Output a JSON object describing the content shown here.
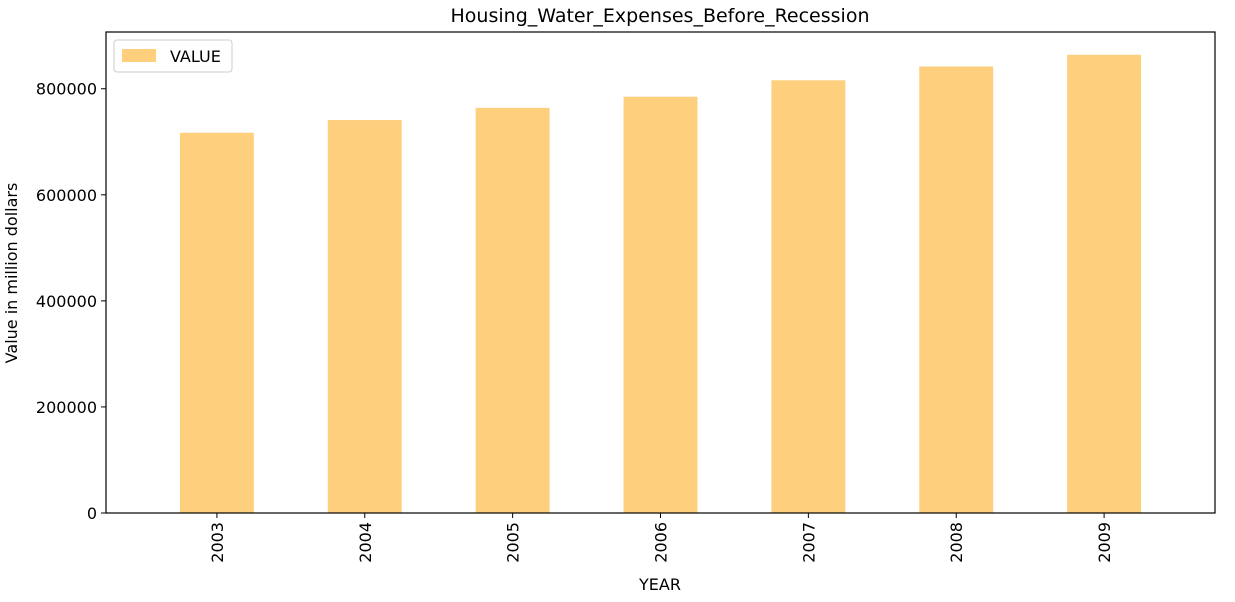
{
  "chart_data": {
    "type": "bar",
    "title": "Housing_Water_Expenses_Before_Recession",
    "xlabel": "YEAR",
    "ylabel": "Value in million dollars",
    "categories": [
      "2003",
      "2004",
      "2005",
      "2006",
      "2007",
      "2008",
      "2009"
    ],
    "series": [
      {
        "name": "VALUE",
        "color": "#fed07e",
        "values": [
          717000,
          741000,
          764000,
          785000,
          816000,
          842000,
          864000
        ]
      }
    ],
    "ylim": [
      0,
      907000
    ],
    "yticks": [
      0,
      200000,
      400000,
      600000,
      800000
    ],
    "ytick_labels": [
      "0",
      "200000",
      "400000",
      "600000",
      "800000"
    ],
    "grid": false,
    "legend_position": "top-left"
  }
}
